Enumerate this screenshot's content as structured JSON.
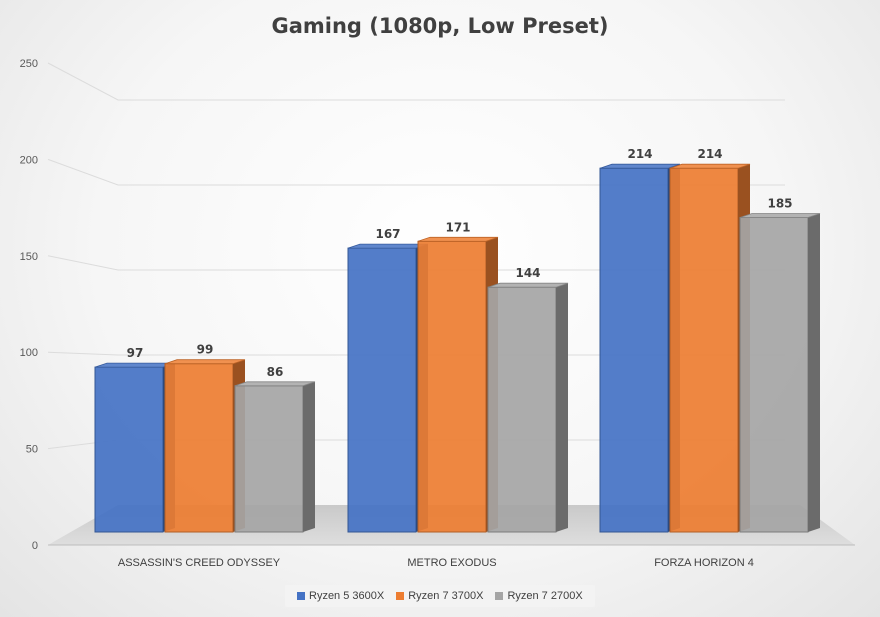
{
  "chart_data": {
    "type": "bar",
    "title": "Gaming (1080p, Low Preset)",
    "categories": [
      "ASSASSIN'S CREED ODYSSEY",
      "METRO EXODUS",
      "FORZA HORIZON 4"
    ],
    "series": [
      {
        "name": "Ryzen 5 3600X",
        "color": "#4472c4",
        "values": [
          97,
          167,
          214
        ]
      },
      {
        "name": "Ryzen 7 3700X",
        "color": "#ed7d31",
        "values": [
          99,
          171,
          214
        ]
      },
      {
        "name": "Ryzen 7 2700X",
        "color": "#a5a5a5",
        "values": [
          86,
          144,
          185
        ]
      }
    ],
    "ylim": [
      0,
      250
    ],
    "yticks": [
      0,
      50,
      100,
      150,
      200,
      250
    ],
    "grid": true,
    "legend": "bottom",
    "data_labels": true
  }
}
